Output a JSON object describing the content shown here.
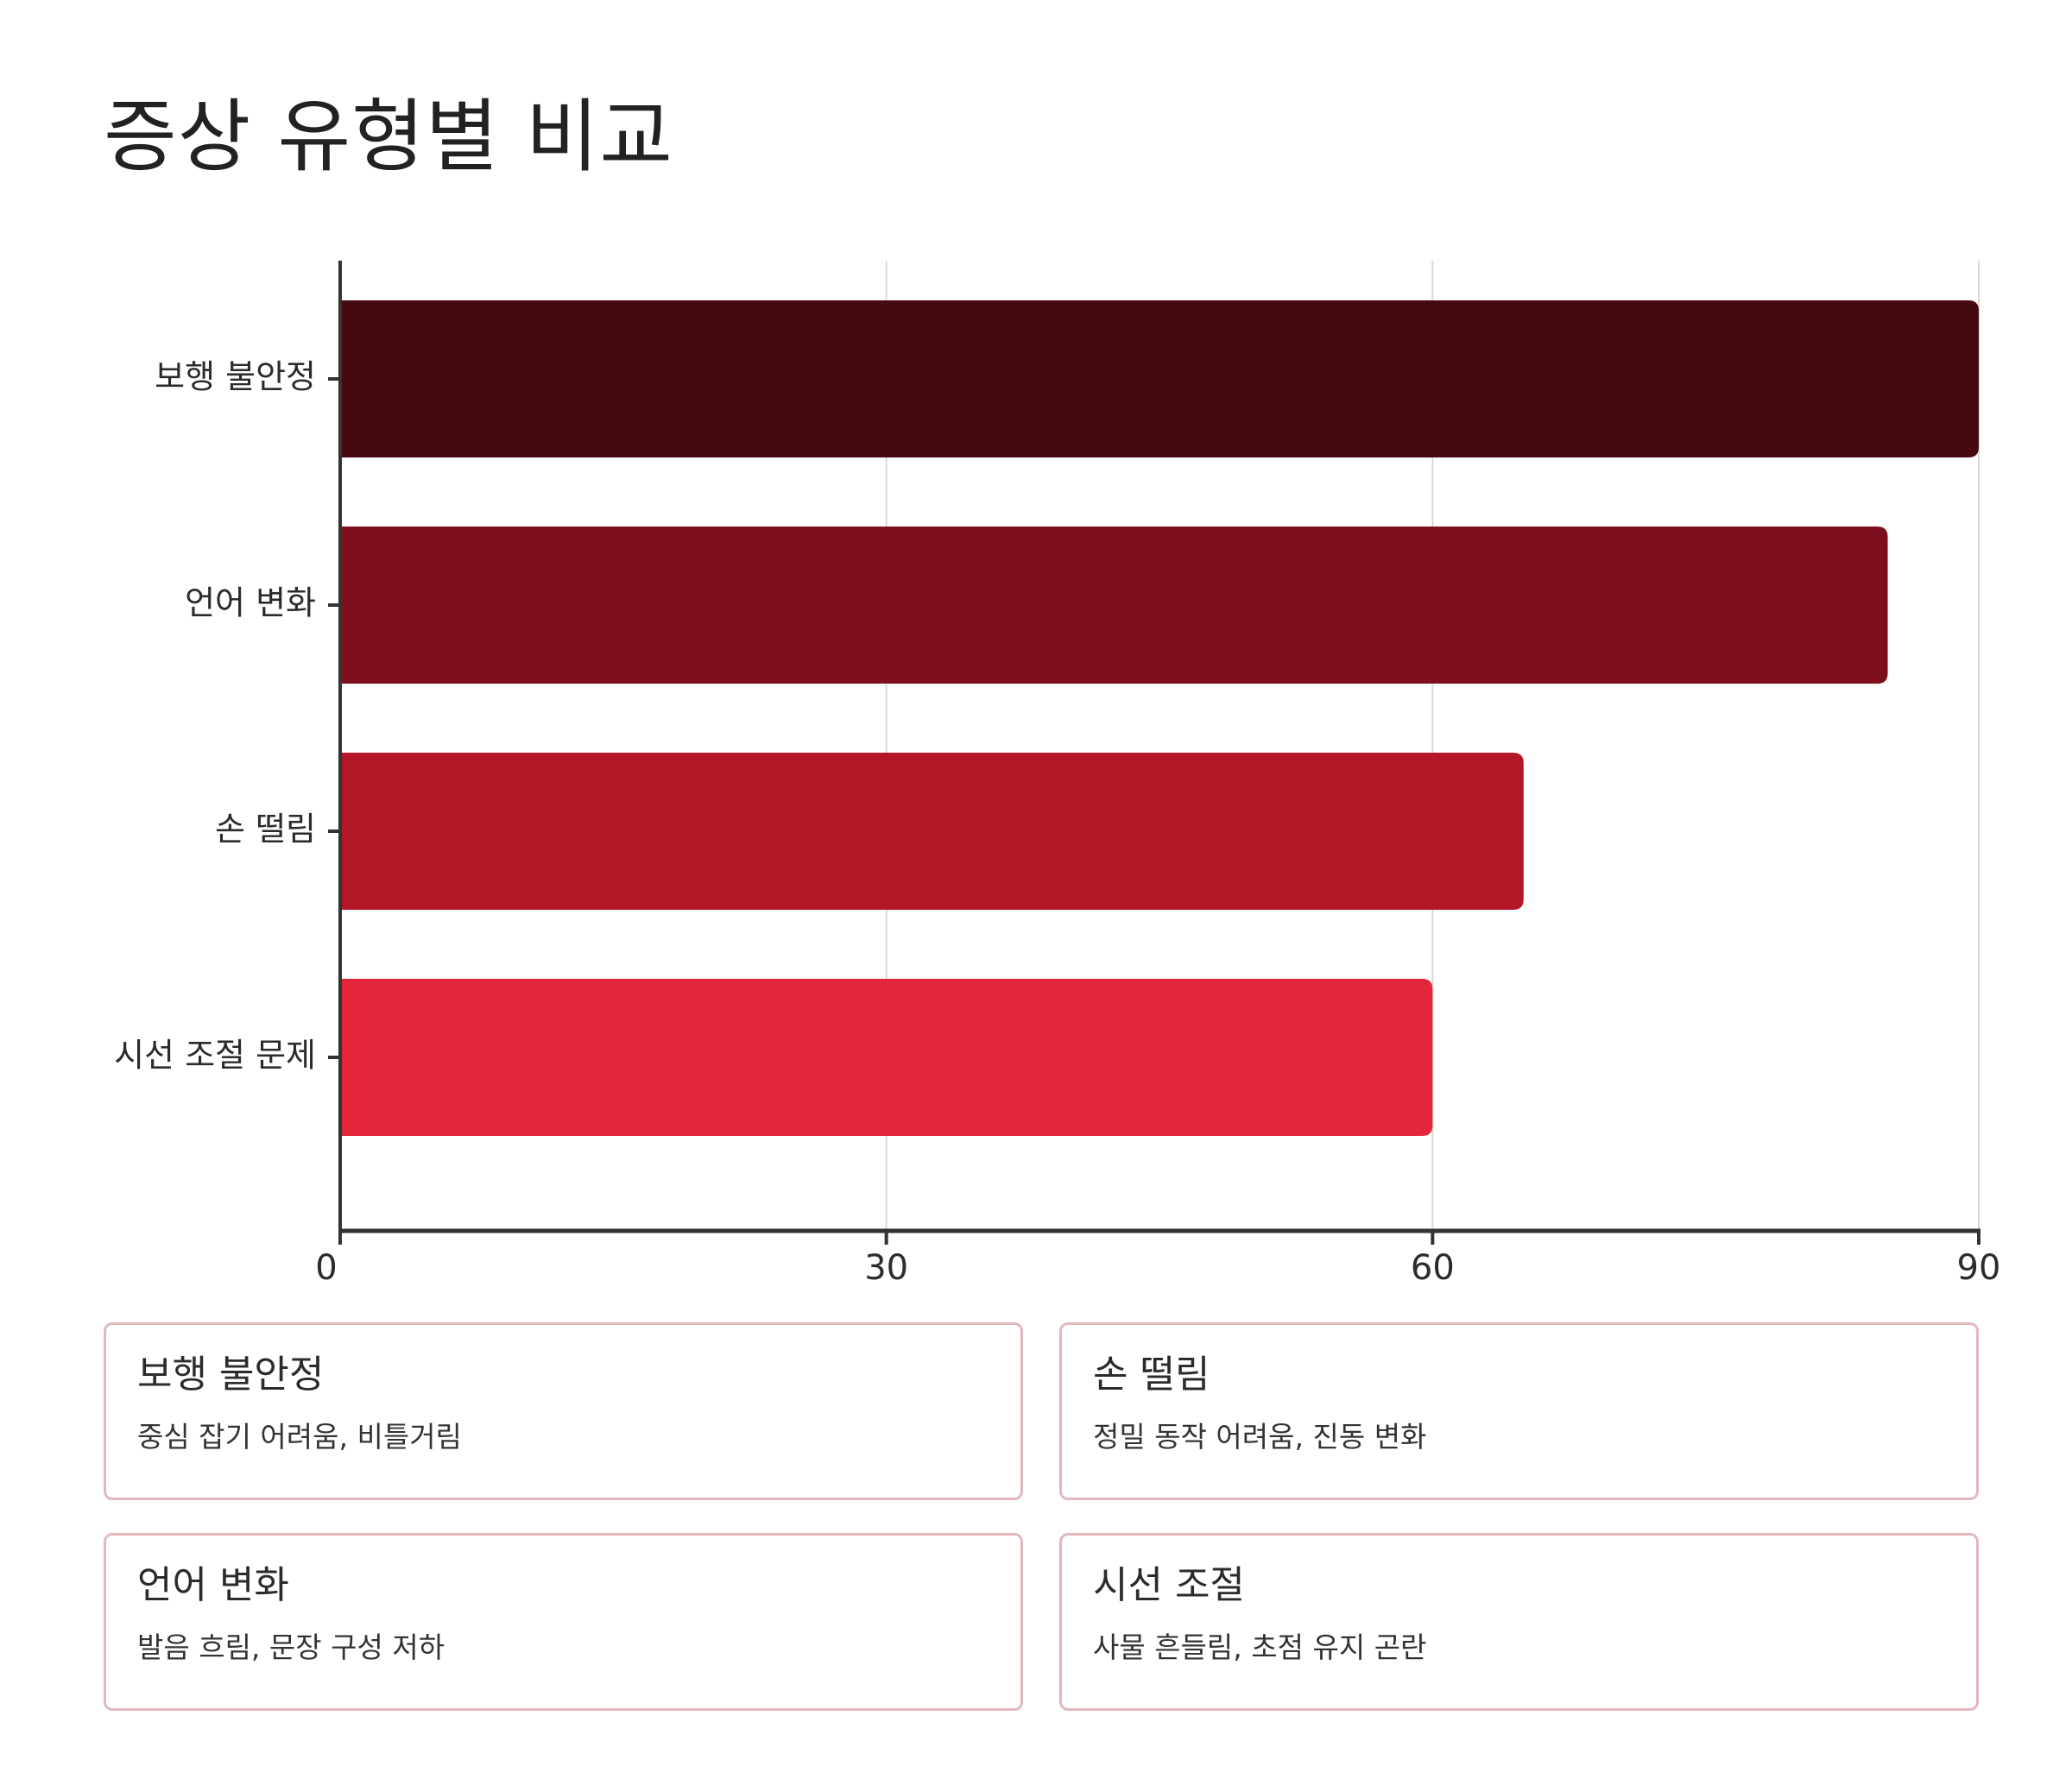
{
  "title": "증상 유형별 비교",
  "chart_data": {
    "type": "bar",
    "orientation": "horizontal",
    "categories": [
      "보행 불안정",
      "언어 변화",
      "손 떨림",
      "시선 조절 문제"
    ],
    "values": [
      90,
      85,
      65,
      60
    ],
    "colors": [
      "#450a11",
      "#7e0f1e",
      "#b31727",
      "#e3263b"
    ],
    "xlim": [
      0,
      90
    ],
    "xticks": [
      0,
      30,
      60,
      90
    ],
    "title": "증상 유형별 비교",
    "xlabel": "",
    "ylabel": "",
    "grid": true,
    "legend": "none"
  },
  "cards": [
    {
      "title": "보행 불안정",
      "desc": "중심 잡기 어려움, 비틀거림"
    },
    {
      "title": "손 떨림",
      "desc": "정밀 동작 어려움, 진동 변화"
    },
    {
      "title": "언어 변화",
      "desc": "발음 흐림, 문장 구성 저하"
    },
    {
      "title": "시선 조절",
      "desc": "사물 흔들림, 초점 유지 곤란"
    }
  ],
  "colors": {
    "axis": "#333333",
    "grid": "#d9d9d9",
    "card_border": "#e0b9bd"
  }
}
